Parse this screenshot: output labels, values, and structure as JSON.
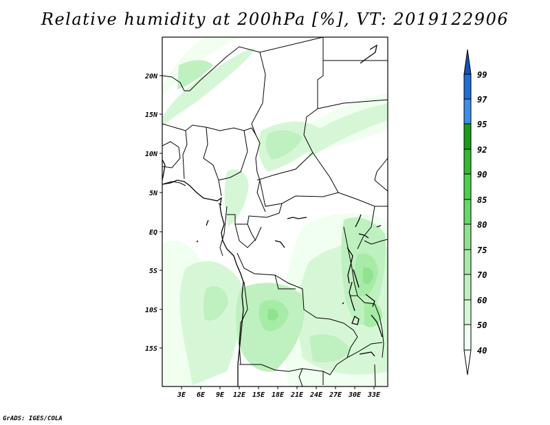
{
  "title": "Relative humidity at 200hPa [%], VT: 2019122906",
  "footer": "GrADS: IGES/COLA",
  "map": {
    "variable": "Relative humidity",
    "level": "200hPa",
    "lon_range": [
      0,
      36
    ],
    "lat_range": [
      -20,
      25
    ],
    "lon_ticks": [
      "3E",
      "6E",
      "9E",
      "12E",
      "15E",
      "18E",
      "21E",
      "24E",
      "27E",
      "30E",
      "33E"
    ],
    "lat_ticks": [
      "20N",
      "15N",
      "10N",
      "5N",
      "EQ",
      "5S",
      "10S",
      "15S"
    ],
    "fill_colors": {
      "40-50": "#f0fff0",
      "50-60": "#d6f7d6",
      "60-70": "#bff0bf",
      "70-75": "#a6eba6",
      "75-80": "#8fe38f"
    }
  },
  "colorbar": {
    "labels": [
      "40",
      "50",
      "60",
      "70",
      "75",
      "80",
      "85",
      "90",
      "92",
      "95",
      "97",
      "99"
    ],
    "colors": [
      "#ffffff",
      "#f0fff0",
      "#d6f7d6",
      "#bff0bf",
      "#a6eba6",
      "#8fe38f",
      "#66d966",
      "#4ccf4c",
      "#33b833",
      "#1a9c1a",
      "#3c8fe8",
      "#1f6fd6",
      "#1451b8"
    ]
  }
}
